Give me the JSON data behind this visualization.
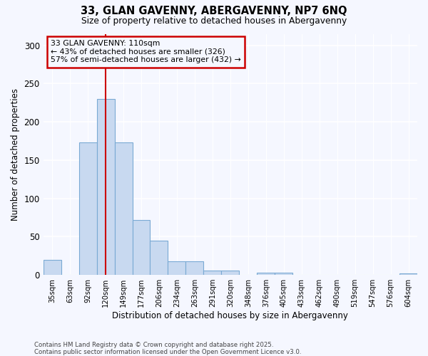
{
  "title1": "33, GLAN GAVENNY, ABERGAVENNY, NP7 6NQ",
  "title2": "Size of property relative to detached houses in Abergavenny",
  "xlabel": "Distribution of detached houses by size in Abergavenny",
  "ylabel": "Number of detached properties",
  "categories": [
    "35sqm",
    "63sqm",
    "92sqm",
    "120sqm",
    "149sqm",
    "177sqm",
    "206sqm",
    "234sqm",
    "263sqm",
    "291sqm",
    "320sqm",
    "348sqm",
    "376sqm",
    "405sqm",
    "433sqm",
    "462sqm",
    "490sqm",
    "519sqm",
    "547sqm",
    "576sqm",
    "604sqm"
  ],
  "values": [
    20,
    0,
    173,
    230,
    173,
    72,
    45,
    18,
    18,
    6,
    6,
    0,
    3,
    3,
    0,
    0,
    0,
    0,
    0,
    0,
    2
  ],
  "bar_color": "#c8d9f0",
  "bar_edge_color": "#7aaad4",
  "background_color": "#f5f7ff",
  "grid_color": "#ffffff",
  "annotation_box_text": "33 GLAN GAVENNY: 110sqm\n← 43% of detached houses are smaller (326)\n57% of semi-detached houses are larger (432) →",
  "annotation_box_color": "#cc0000",
  "red_line_x": 3.0,
  "ylim": [
    0,
    315
  ],
  "yticks": [
    0,
    50,
    100,
    150,
    200,
    250,
    300
  ],
  "footnote1": "Contains HM Land Registry data © Crown copyright and database right 2025.",
  "footnote2": "Contains public sector information licensed under the Open Government Licence v3.0."
}
